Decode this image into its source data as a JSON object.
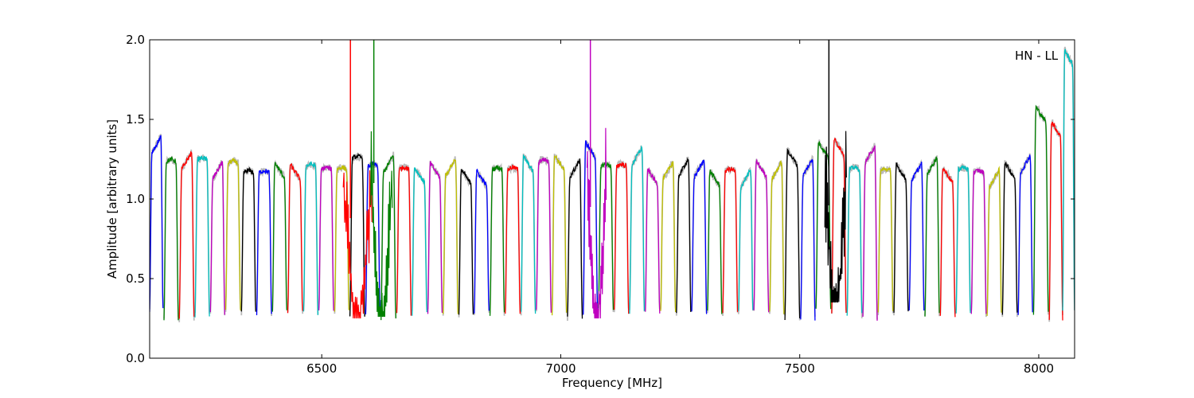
{
  "chart_data": {
    "type": "line",
    "title": "",
    "annotation": "HN - LL",
    "xlabel": "Frequency [MHz]",
    "ylabel": "Amplitude [arbitrary units]",
    "xlim": [
      6140,
      8075
    ],
    "ylim": [
      0.0,
      2.0
    ],
    "xticks": [
      6500,
      7000,
      7500,
      8000
    ],
    "xtick_labels": [
      "6500",
      "7000",
      "7500",
      "8000"
    ],
    "yticks": [
      0.0,
      0.5,
      1.0,
      1.5,
      2.0
    ],
    "ytick_labels": [
      "0.0",
      "0.5",
      "1.0",
      "1.5",
      "2.0"
    ],
    "grid": false,
    "legend": "none",
    "color_cycle": [
      "#0000ff",
      "#008000",
      "#ff0000",
      "#00bfbf",
      "#bf00bf",
      "#bfbf00",
      "#000000"
    ],
    "reference_color": "#bbbbbb",
    "series": [
      {
        "x_start": 6140,
        "x_end": 6168,
        "peak": 1.42,
        "dip": 0.3,
        "shape": "rise"
      },
      {
        "x_start": 6170,
        "x_end": 6200,
        "peak": 1.25,
        "dip": 0.25,
        "shape": "flat"
      },
      {
        "x_start": 6202,
        "x_end": 6233,
        "peak": 1.32,
        "dip": 0.25,
        "shape": "rise"
      },
      {
        "x_start": 6235,
        "x_end": 6265,
        "peak": 1.26,
        "dip": 0.27,
        "shape": "flat"
      },
      {
        "x_start": 6267,
        "x_end": 6297,
        "peak": 1.26,
        "dip": 0.28,
        "shape": "rise"
      },
      {
        "x_start": 6299,
        "x_end": 6330,
        "peak": 1.24,
        "dip": 0.29,
        "shape": "flat"
      },
      {
        "x_start": 6332,
        "x_end": 6362,
        "peak": 1.18,
        "dip": 0.28,
        "shape": "flat"
      },
      {
        "x_start": 6364,
        "x_end": 6395,
        "peak": 1.18,
        "dip": 0.28,
        "shape": "flat"
      },
      {
        "x_start": 6397,
        "x_end": 6427,
        "peak": 1.25,
        "dip": 0.29,
        "shape": "fall"
      },
      {
        "x_start": 6429,
        "x_end": 6460,
        "peak": 1.24,
        "dip": 0.29,
        "shape": "fall"
      },
      {
        "x_start": 6462,
        "x_end": 6492,
        "peak": 1.22,
        "dip": 0.28,
        "shape": "flat"
      },
      {
        "x_start": 6494,
        "x_end": 6525,
        "peak": 1.2,
        "dip": 0.29,
        "shape": "flat"
      },
      {
        "x_start": 6527,
        "x_end": 6557,
        "peak": 1.2,
        "dip": 0.29,
        "shape": "flat"
      },
      {
        "x_start": 6559,
        "x_end": 6590,
        "peak": 1.27,
        "dip": 0.25,
        "shape": "flat"
      },
      {
        "x_start": 6592,
        "x_end": 6622,
        "peak": 1.22,
        "dip": 0.27,
        "shape": "flat"
      },
      {
        "x_start": 6624,
        "x_end": 6655,
        "peak": 1.3,
        "dip": 0.25,
        "shape": "rise"
      },
      {
        "x_start": 6657,
        "x_end": 6687,
        "peak": 1.2,
        "dip": 0.28,
        "shape": "flat"
      },
      {
        "x_start": 6689,
        "x_end": 6720,
        "peak": 1.22,
        "dip": 0.28,
        "shape": "fall"
      },
      {
        "x_start": 6722,
        "x_end": 6752,
        "peak": 1.25,
        "dip": 0.29,
        "shape": "fall"
      },
      {
        "x_start": 6754,
        "x_end": 6785,
        "peak": 1.28,
        "dip": 0.29,
        "shape": "rise"
      },
      {
        "x_start": 6787,
        "x_end": 6817,
        "peak": 1.21,
        "dip": 0.28,
        "shape": "fall"
      },
      {
        "x_start": 6819,
        "x_end": 6850,
        "peak": 1.2,
        "dip": 0.29,
        "shape": "fall"
      },
      {
        "x_start": 6852,
        "x_end": 6882,
        "peak": 1.2,
        "dip": 0.28,
        "shape": "flat"
      },
      {
        "x_start": 6884,
        "x_end": 6915,
        "peak": 1.2,
        "dip": 0.29,
        "shape": "flat"
      },
      {
        "x_start": 6917,
        "x_end": 6947,
        "peak": 1.29,
        "dip": 0.29,
        "shape": "fall"
      },
      {
        "x_start": 6949,
        "x_end": 6980,
        "peak": 1.25,
        "dip": 0.29,
        "shape": "flat"
      },
      {
        "x_start": 6982,
        "x_end": 7012,
        "peak": 1.3,
        "dip": 0.28,
        "shape": "fall"
      },
      {
        "x_start": 7014,
        "x_end": 7045,
        "peak": 1.27,
        "dip": 0.25,
        "shape": "rise"
      },
      {
        "x_start": 7047,
        "x_end": 7077,
        "peak": 1.38,
        "dip": 0.28,
        "shape": "fall"
      },
      {
        "x_start": 7079,
        "x_end": 7110,
        "peak": 1.22,
        "dip": 0.3,
        "shape": "flat"
      },
      {
        "x_start": 7112,
        "x_end": 7142,
        "peak": 1.22,
        "dip": 0.29,
        "shape": "flat"
      },
      {
        "x_start": 7144,
        "x_end": 7175,
        "peak": 1.35,
        "dip": 0.29,
        "shape": "rise"
      },
      {
        "x_start": 7177,
        "x_end": 7207,
        "peak": 1.21,
        "dip": 0.29,
        "shape": "fall"
      },
      {
        "x_start": 7209,
        "x_end": 7240,
        "peak": 1.26,
        "dip": 0.29,
        "shape": "rise"
      },
      {
        "x_start": 7242,
        "x_end": 7272,
        "peak": 1.28,
        "dip": 0.29,
        "shape": "rise"
      },
      {
        "x_start": 7274,
        "x_end": 7305,
        "peak": 1.27,
        "dip": 0.28,
        "shape": "rise"
      },
      {
        "x_start": 7307,
        "x_end": 7337,
        "peak": 1.2,
        "dip": 0.29,
        "shape": "fall"
      },
      {
        "x_start": 7339,
        "x_end": 7370,
        "peak": 1.19,
        "dip": 0.29,
        "shape": "flat"
      },
      {
        "x_start": 7372,
        "x_end": 7402,
        "peak": 1.21,
        "dip": 0.29,
        "shape": "rise"
      },
      {
        "x_start": 7404,
        "x_end": 7435,
        "peak": 1.26,
        "dip": 0.29,
        "shape": "fall"
      },
      {
        "x_start": 7437,
        "x_end": 7467,
        "peak": 1.26,
        "dip": 0.28,
        "shape": "rise"
      },
      {
        "x_start": 7469,
        "x_end": 7500,
        "peak": 1.33,
        "dip": 0.25,
        "shape": "fall"
      },
      {
        "x_start": 7502,
        "x_end": 7532,
        "peak": 1.28,
        "dip": 0.25,
        "shape": "rise"
      },
      {
        "x_start": 7534,
        "x_end": 7565,
        "peak": 1.38,
        "dip": 0.3,
        "shape": "fall"
      },
      {
        "x_start": 7567,
        "x_end": 7597,
        "peak": 1.4,
        "dip": 0.28,
        "shape": "fall"
      },
      {
        "x_start": 7599,
        "x_end": 7630,
        "peak": 1.2,
        "dip": 0.27,
        "shape": "flat"
      },
      {
        "x_start": 7632,
        "x_end": 7662,
        "peak": 1.36,
        "dip": 0.25,
        "shape": "rise"
      },
      {
        "x_start": 7664,
        "x_end": 7695,
        "peak": 1.19,
        "dip": 0.29,
        "shape": "flat"
      },
      {
        "x_start": 7697,
        "x_end": 7727,
        "peak": 1.24,
        "dip": 0.29,
        "shape": "fall"
      },
      {
        "x_start": 7729,
        "x_end": 7760,
        "peak": 1.25,
        "dip": 0.29,
        "shape": "rise"
      },
      {
        "x_start": 7762,
        "x_end": 7792,
        "peak": 1.29,
        "dip": 0.27,
        "shape": "rise"
      },
      {
        "x_start": 7794,
        "x_end": 7825,
        "peak": 1.22,
        "dip": 0.27,
        "shape": "fall"
      },
      {
        "x_start": 7827,
        "x_end": 7857,
        "peak": 1.2,
        "dip": 0.28,
        "shape": "flat"
      },
      {
        "x_start": 7859,
        "x_end": 7890,
        "peak": 1.18,
        "dip": 0.28,
        "shape": "flat"
      },
      {
        "x_start": 7892,
        "x_end": 7922,
        "peak": 1.21,
        "dip": 0.28,
        "shape": "rise"
      },
      {
        "x_start": 7924,
        "x_end": 7955,
        "peak": 1.25,
        "dip": 0.28,
        "shape": "fall"
      },
      {
        "x_start": 7957,
        "x_end": 7987,
        "peak": 1.3,
        "dip": 0.28,
        "shape": "rise"
      },
      {
        "x_start": 7989,
        "x_end": 8020,
        "peak": 1.6,
        "dip": 0.28,
        "shape": "fall"
      },
      {
        "x_start": 8022,
        "x_end": 8050,
        "peak": 1.51,
        "dip": 0.25,
        "shape": "fall"
      },
      {
        "x_start": 8050,
        "x_end": 8075,
        "peak": 1.96,
        "dip": 0.3,
        "shape": "fall"
      }
    ],
    "spikes": [
      {
        "x": 6560,
        "color": "#ff0000",
        "top": 2.0,
        "low": 0.88
      },
      {
        "x": 6609,
        "color": "#008000",
        "top": 2.0,
        "low": 1.1
      },
      {
        "x": 7062,
        "color": "#bf00bf",
        "top": 2.0,
        "low": 0.95
      },
      {
        "x": 7561,
        "color": "#000000",
        "top": 2.0,
        "low": 0.96
      }
    ],
    "rfi_regions": [
      {
        "x_center": 6575,
        "width": 60,
        "low": 0.25,
        "color": "#ff0000"
      },
      {
        "x_center": 6625,
        "width": 45,
        "low": 0.26,
        "color": "#008000"
      },
      {
        "x_center": 7075,
        "width": 40,
        "low": 0.25,
        "color": "#bf00bf"
      },
      {
        "x_center": 7575,
        "width": 45,
        "low": 0.35,
        "color": "#000000"
      }
    ]
  }
}
